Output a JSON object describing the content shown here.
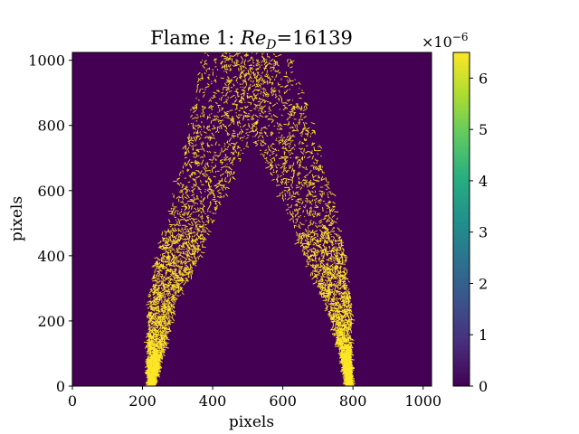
{
  "chart_data": {
    "type": "heatmap",
    "title_prefix": "Flame 1: ",
    "title_math_base": "Re",
    "title_math_sub": "D",
    "title_suffix": "=16139",
    "xlabel": "pixels",
    "ylabel": "pixels",
    "xlim": [
      0,
      1024
    ],
    "ylim": [
      0,
      1024
    ],
    "xticks": [
      0,
      200,
      400,
      600,
      800,
      1000
    ],
    "yticks": [
      0,
      200,
      400,
      600,
      800,
      1000
    ],
    "colormap": "viridis",
    "background_color": "#440154",
    "flame_color": "#fde725",
    "colorbar": {
      "range": [
        0,
        6.5e-06
      ],
      "ticks": [
        0,
        1,
        2,
        3,
        4,
        5,
        6
      ],
      "tick_labels": [
        "0",
        "1",
        "2",
        "3",
        "4",
        "5",
        "6"
      ],
      "multiplier_base": "×10",
      "multiplier_exp": "−6"
    },
    "flame_branches": [
      {
        "name": "left",
        "path": [
          [
            225,
            0
          ],
          [
            235,
            100
          ],
          [
            255,
            250
          ],
          [
            300,
            400
          ],
          [
            350,
            550
          ],
          [
            400,
            700
          ],
          [
            440,
            850
          ],
          [
            480,
            1024
          ]
        ],
        "half_width": [
          8,
          20,
          40,
          60,
          70,
          85,
          100,
          110
        ],
        "density": [
          1.0,
          0.9,
          0.7,
          0.55,
          0.45,
          0.4,
          0.4,
          0.4
        ]
      },
      {
        "name": "right",
        "path": [
          [
            790,
            0
          ],
          [
            780,
            100
          ],
          [
            760,
            250
          ],
          [
            720,
            400
          ],
          [
            680,
            550
          ],
          [
            630,
            700
          ],
          [
            570,
            850
          ],
          [
            520,
            1024
          ]
        ],
        "half_width": [
          6,
          15,
          35,
          60,
          70,
          85,
          100,
          110
        ],
        "density": [
          1.0,
          0.9,
          0.7,
          0.55,
          0.45,
          0.4,
          0.4,
          0.4
        ]
      }
    ]
  }
}
